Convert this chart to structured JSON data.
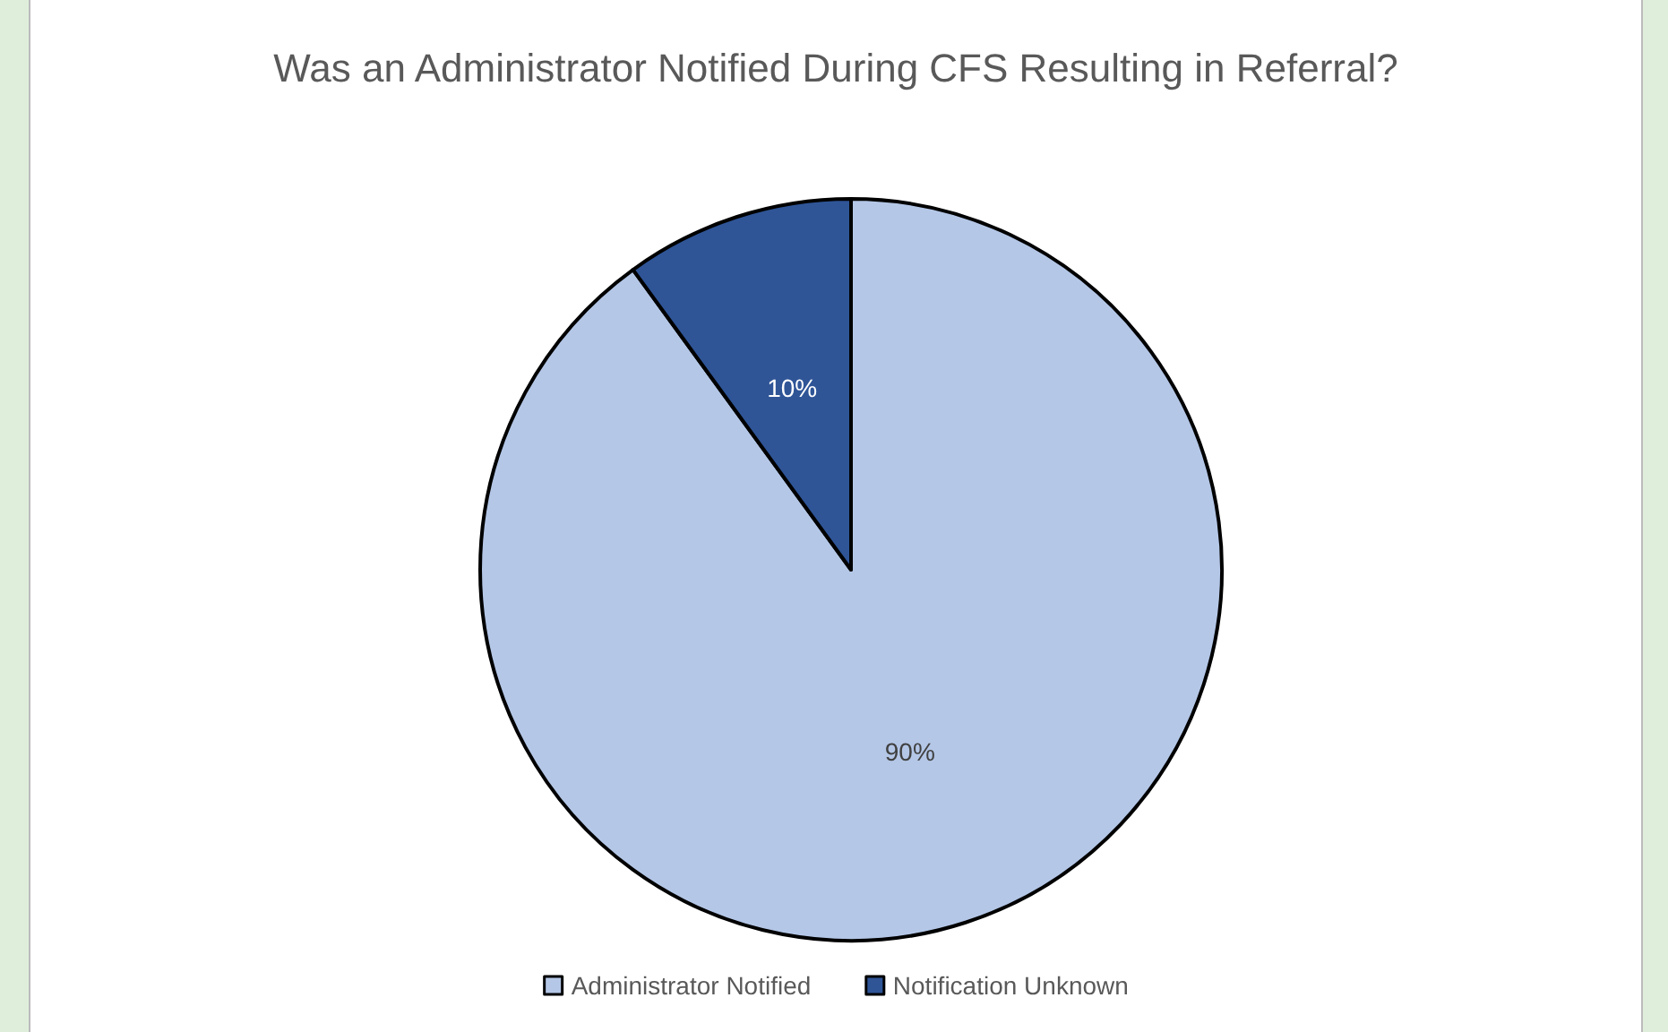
{
  "chart_data": {
    "type": "pie",
    "title": "Was an Administrator Notified During CFS Resulting in Referral?",
    "categories": [
      "Administrator Notified",
      "Notification Unknown"
    ],
    "values": [
      90,
      10
    ],
    "value_labels": [
      "90%",
      "10%"
    ],
    "colors": [
      "#b4c7e7",
      "#2f5597"
    ],
    "legend": "bottom"
  }
}
